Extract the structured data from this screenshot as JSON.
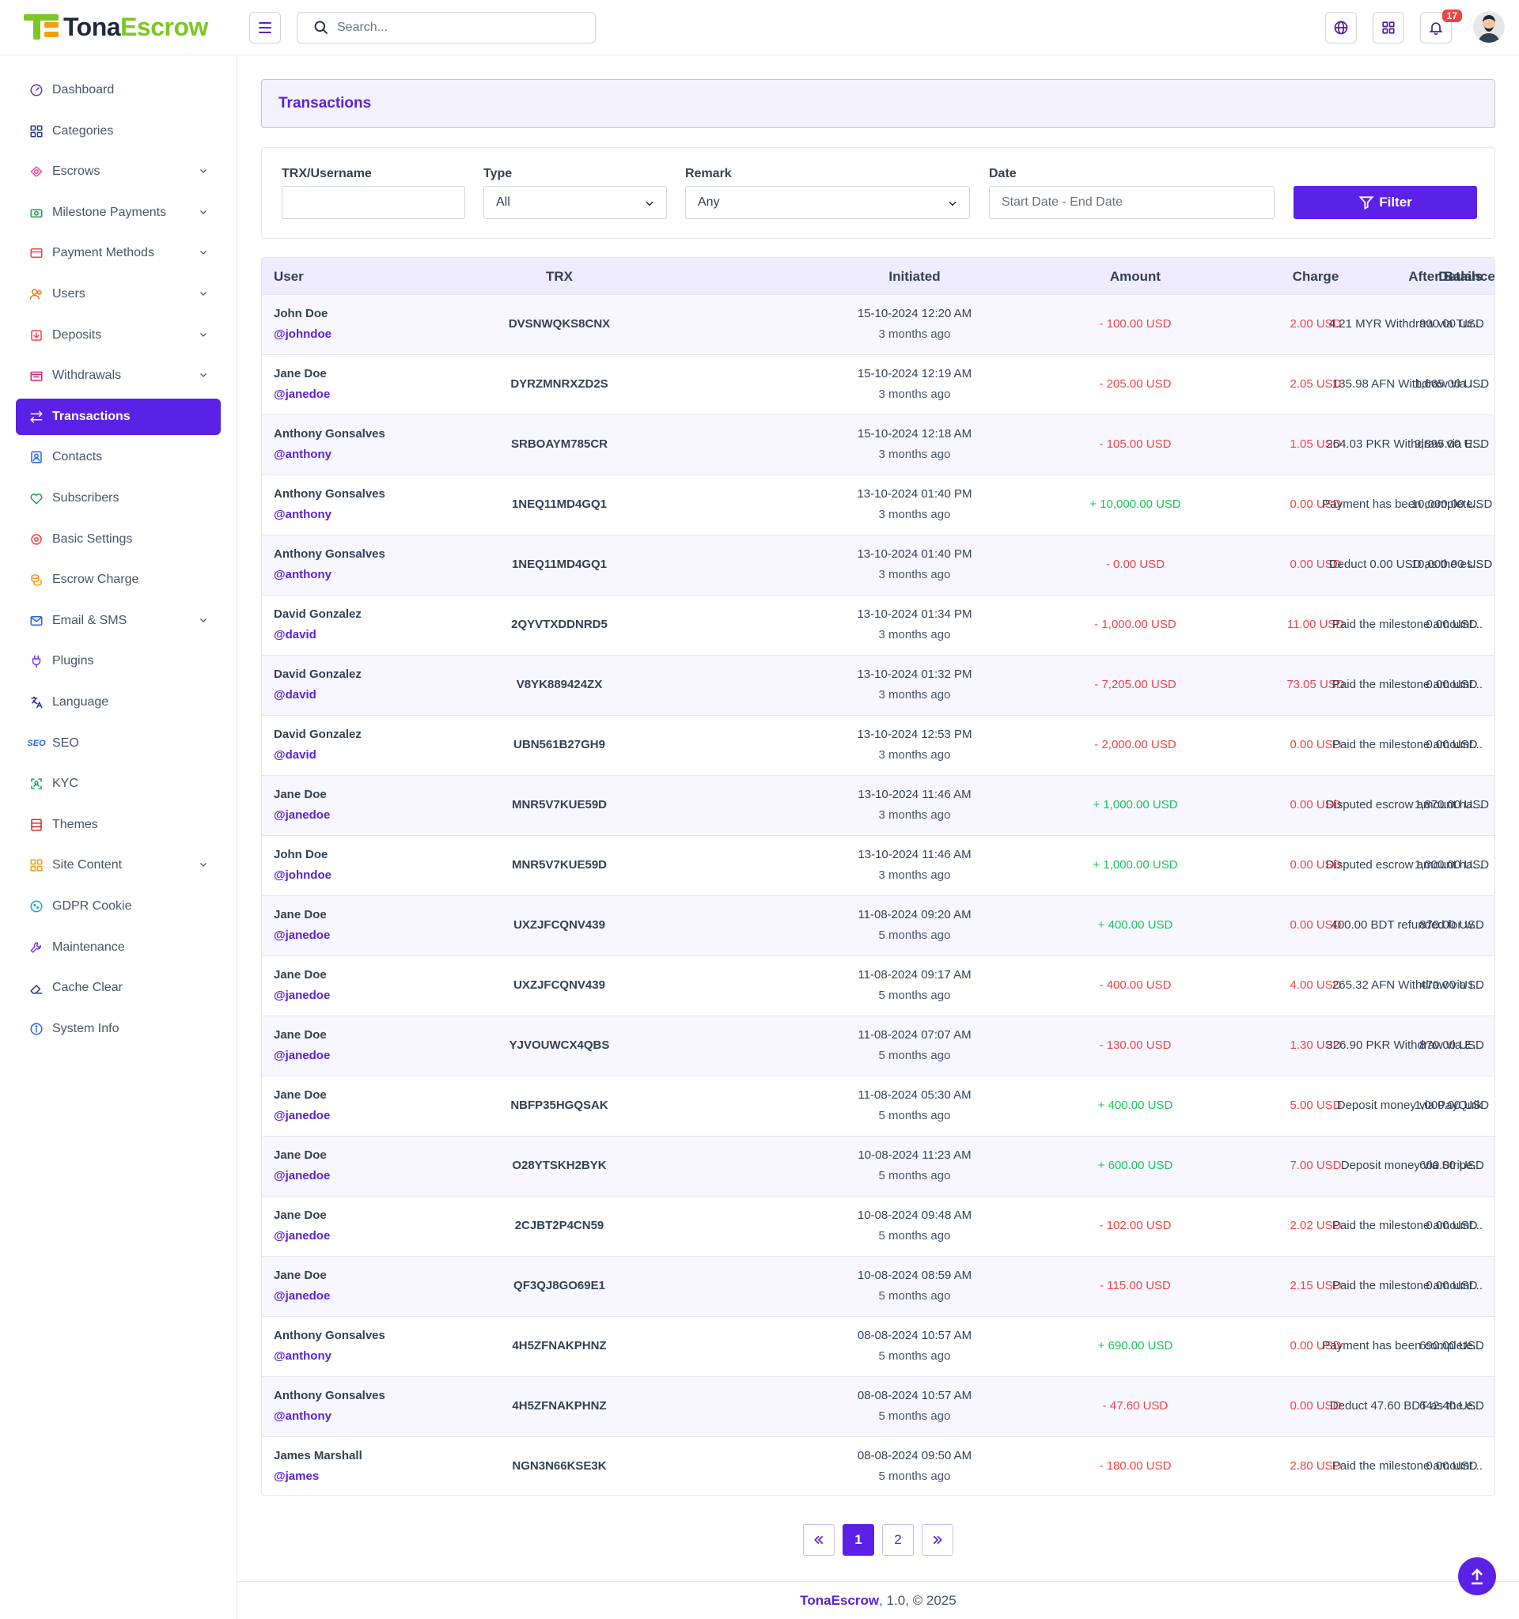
{
  "brand": {
    "name_part1": "Tona",
    "name_part2": "Escrow"
  },
  "search": {
    "placeholder": "Search..."
  },
  "header": {
    "notification_count": "17"
  },
  "sidebar": {
    "items": [
      {
        "label": "Dashboard",
        "icon": "dashboard-icon",
        "has_children": false,
        "active": false
      },
      {
        "label": "Categories",
        "icon": "categories-icon",
        "has_children": false,
        "active": false
      },
      {
        "label": "Escrows",
        "icon": "escrows-icon",
        "has_children": true,
        "active": false
      },
      {
        "label": "Milestone Payments",
        "icon": "milestone-icon",
        "has_children": true,
        "active": false
      },
      {
        "label": "Payment Methods",
        "icon": "credit-card-icon",
        "has_children": true,
        "active": false
      },
      {
        "label": "Users",
        "icon": "users-icon",
        "has_children": true,
        "active": false
      },
      {
        "label": "Deposits",
        "icon": "deposit-icon",
        "has_children": true,
        "active": false
      },
      {
        "label": "Withdrawals",
        "icon": "withdraw-icon",
        "has_children": true,
        "active": false
      },
      {
        "label": "Transactions",
        "icon": "transactions-icon",
        "has_children": false,
        "active": true
      },
      {
        "label": "Contacts",
        "icon": "contacts-icon",
        "has_children": false,
        "active": false
      },
      {
        "label": "Subscribers",
        "icon": "subscribers-icon",
        "has_children": false,
        "active": false
      },
      {
        "label": "Basic Settings",
        "icon": "gear-icon",
        "has_children": false,
        "active": false
      },
      {
        "label": "Escrow Charge",
        "icon": "coins-icon",
        "has_children": false,
        "active": false
      },
      {
        "label": "Email & SMS",
        "icon": "mail-icon",
        "has_children": true,
        "active": false
      },
      {
        "label": "Plugins",
        "icon": "plug-icon",
        "has_children": false,
        "active": false
      },
      {
        "label": "Language",
        "icon": "language-icon",
        "has_children": false,
        "active": false
      },
      {
        "label": "SEO",
        "icon": "seo-icon",
        "has_children": false,
        "active": false
      },
      {
        "label": "KYC",
        "icon": "kyc-icon",
        "has_children": false,
        "active": false
      },
      {
        "label": "Themes",
        "icon": "themes-icon",
        "has_children": false,
        "active": false
      },
      {
        "label": "Site Content",
        "icon": "site-content-icon",
        "has_children": true,
        "active": false
      },
      {
        "label": "GDPR Cookie",
        "icon": "cookie-icon",
        "has_children": false,
        "active": false
      },
      {
        "label": "Maintenance",
        "icon": "wrench-icon",
        "has_children": false,
        "active": false
      },
      {
        "label": "Cache Clear",
        "icon": "eraser-icon",
        "has_children": false,
        "active": false
      },
      {
        "label": "System Info",
        "icon": "info-icon",
        "has_children": false,
        "active": false
      }
    ]
  },
  "page": {
    "title": "Transactions"
  },
  "filters": {
    "trx_label": "TRX/Username",
    "trx_value": "",
    "type_label": "Type",
    "type_value": "All",
    "remark_label": "Remark",
    "remark_value": "Any",
    "date_label": "Date",
    "date_placeholder": "Start Date - End Date",
    "filter_button": "Filter"
  },
  "table": {
    "headers": {
      "user": "User",
      "trx": "TRX",
      "initiated": "Initiated",
      "amount": "Amount",
      "charge": "Charge",
      "after_balance": "After Balance",
      "details": "Details"
    },
    "rows": [
      {
        "name": "John Doe",
        "username": "@johndoe",
        "trx": "DVSNWQKS8CNX",
        "date": "15-10-2024 12:20 AM",
        "ago": "3 months ago",
        "amount": "- 100.00 USD",
        "sign": "neg",
        "charge": "2.00 USD",
        "balance": "900.00 USD",
        "details": "4.21 MYR Withdraw via Tur..."
      },
      {
        "name": "Jane Doe",
        "username": "@janedoe",
        "trx": "DYRZMNRXZD2S",
        "date": "15-10-2024 12:19 AM",
        "ago": "3 months ago",
        "amount": "- 205.00 USD",
        "sign": "neg",
        "charge": "2.05 USD",
        "balance": "1,665.00 USD",
        "details": "135.98 AFN Withdraw via I..."
      },
      {
        "name": "Anthony Gonsalves",
        "username": "@anthony",
        "trx": "SRBOAYM785CR",
        "date": "15-10-2024 12:18 AM",
        "ago": "3 months ago",
        "amount": "- 105.00 USD",
        "sign": "neg",
        "charge": "1.05 USD",
        "balance": "9,895.00 USD",
        "details": "264.03 PKR Withdraw via E..."
      },
      {
        "name": "Anthony Gonsalves",
        "username": "@anthony",
        "trx": "1NEQ11MD4GQ1",
        "date": "13-10-2024 01:40 PM",
        "ago": "3 months ago",
        "amount": "+ 10,000.00 USD",
        "sign": "pos",
        "charge": "0.00 USD",
        "balance": "10,000.00 USD",
        "details": "Payment has been complete..."
      },
      {
        "name": "Anthony Gonsalves",
        "username": "@anthony",
        "trx": "1NEQ11MD4GQ1",
        "date": "13-10-2024 01:40 PM",
        "ago": "3 months ago",
        "amount": "- 0.00 USD",
        "sign": "neg",
        "charge": "0.00 USD",
        "balance": "10,000.00 USD",
        "details": "Deduct 0.00 USD as the es..."
      },
      {
        "name": "David Gonzalez",
        "username": "@david",
        "trx": "2QYVTXDDNRD5",
        "date": "13-10-2024 01:34 PM",
        "ago": "3 months ago",
        "amount": "- 1,000.00 USD",
        "sign": "neg",
        "charge": "11.00 USD",
        "balance": "0.00 USD",
        "details": "Paid the milestone amount..."
      },
      {
        "name": "David Gonzalez",
        "username": "@david",
        "trx": "V8YK889424ZX",
        "date": "13-10-2024 01:32 PM",
        "ago": "3 months ago",
        "amount": "- 7,205.00 USD",
        "sign": "neg",
        "charge": "73.05 USD",
        "balance": "0.00 USD",
        "details": "Paid the milestone amount..."
      },
      {
        "name": "David Gonzalez",
        "username": "@david",
        "trx": "UBN561B27GH9",
        "date": "13-10-2024 12:53 PM",
        "ago": "3 months ago",
        "amount": "- 2,000.00 USD",
        "sign": "neg",
        "charge": "0.00 USD",
        "balance": "0.00 USD",
        "details": "Paid the milestone amount..."
      },
      {
        "name": "Jane Doe",
        "username": "@janedoe",
        "trx": "MNR5V7KUE59D",
        "date": "13-10-2024 11:46 AM",
        "ago": "3 months ago",
        "amount": "+ 1,000.00 USD",
        "sign": "pos",
        "charge": "0.00 USD",
        "balance": "1,870.00 USD",
        "details": "Disputed escrow amount ha..."
      },
      {
        "name": "John Doe",
        "username": "@johndoe",
        "trx": "MNR5V7KUE59D",
        "date": "13-10-2024 11:46 AM",
        "ago": "3 months ago",
        "amount": "+ 1,000.00 USD",
        "sign": "pos",
        "charge": "0.00 USD",
        "balance": "1,000.00 USD",
        "details": "Disputed escrow amount ha..."
      },
      {
        "name": "Jane Doe",
        "username": "@janedoe",
        "trx": "UXZJFCQNV439",
        "date": "11-08-2024 09:20 AM",
        "ago": "5 months ago",
        "amount": "+ 400.00 USD",
        "sign": "pos",
        "charge": "0.00 USD",
        "balance": "870.00 USD",
        "details": "400.00 BDT refunded for w..."
      },
      {
        "name": "Jane Doe",
        "username": "@janedoe",
        "trx": "UXZJFCQNV439",
        "date": "11-08-2024 09:17 AM",
        "ago": "5 months ago",
        "amount": "- 400.00 USD",
        "sign": "neg",
        "charge": "4.00 USD",
        "balance": "470.00 USD",
        "details": "265.32 AFN Withdraw via I..."
      },
      {
        "name": "Jane Doe",
        "username": "@janedoe",
        "trx": "YJVOUWCX4QBS",
        "date": "11-08-2024 07:07 AM",
        "ago": "5 months ago",
        "amount": "- 130.00 USD",
        "sign": "neg",
        "charge": "1.30 USD",
        "balance": "870.00 USD",
        "details": "326.90 PKR Withdraw via E..."
      },
      {
        "name": "Jane Doe",
        "username": "@janedoe",
        "trx": "NBFP35HGQSAK",
        "date": "11-08-2024 05:30 AM",
        "ago": "5 months ago",
        "amount": "+ 400.00 USD",
        "sign": "pos",
        "charge": "5.00 USD",
        "balance": "1,000.00 USD",
        "details": "Deposit money via PayQuik"
      },
      {
        "name": "Jane Doe",
        "username": "@janedoe",
        "trx": "O28YTSKH2BYK",
        "date": "10-08-2024 11:23 AM",
        "ago": "5 months ago",
        "amount": "+ 600.00 USD",
        "sign": "pos",
        "charge": "7.00 USD",
        "balance": "600.00 USD",
        "details": "Deposit money via Stripe..."
      },
      {
        "name": "Jane Doe",
        "username": "@janedoe",
        "trx": "2CJBT2P4CN59",
        "date": "10-08-2024 09:48 AM",
        "ago": "5 months ago",
        "amount": "- 102.00 USD",
        "sign": "neg",
        "charge": "2.02 USD",
        "balance": "0.00 USD",
        "details": "Paid the milestone amount..."
      },
      {
        "name": "Jane Doe",
        "username": "@janedoe",
        "trx": "QF3QJ8GO69E1",
        "date": "10-08-2024 08:59 AM",
        "ago": "5 months ago",
        "amount": "- 115.00 USD",
        "sign": "neg",
        "charge": "2.15 USD",
        "balance": "0.00 USD",
        "details": "Paid the milestone amount..."
      },
      {
        "name": "Anthony Gonsalves",
        "username": "@anthony",
        "trx": "4H5ZFNAKPHNZ",
        "date": "08-08-2024 10:57 AM",
        "ago": "5 months ago",
        "amount": "+ 690.00 USD",
        "sign": "pos",
        "charge": "0.00 USD",
        "balance": "690.00 USD",
        "details": "Payment has been complete..."
      },
      {
        "name": "Anthony Gonsalves",
        "username": "@anthony",
        "trx": "4H5ZFNAKPHNZ",
        "date": "08-08-2024 10:57 AM",
        "ago": "5 months ago",
        "amount": "- 47.60 USD",
        "sign": "neg",
        "charge": "0.00 USD",
        "balance": "642.40 USD",
        "details": "Deduct 47.60 BDT as the e..."
      },
      {
        "name": "James Marshall",
        "username": "@james",
        "trx": "NGN3N66KSE3K",
        "date": "08-08-2024 09:50 AM",
        "ago": "5 months ago",
        "amount": "- 180.00 USD",
        "sign": "neg",
        "charge": "2.80 USD",
        "balance": "0.00 USD",
        "details": "Paid the milestone amount..."
      }
    ]
  },
  "pagination": {
    "prev": "«",
    "pages": [
      "1",
      "2"
    ],
    "current": "1",
    "next": "»"
  },
  "footer": {
    "brand": "TonaEscrow",
    "suffix": ", 1.0, © 2025"
  },
  "colors": {
    "accent": "#5b21e6",
    "negative": "#ef4444",
    "positive": "#16c45a"
  }
}
